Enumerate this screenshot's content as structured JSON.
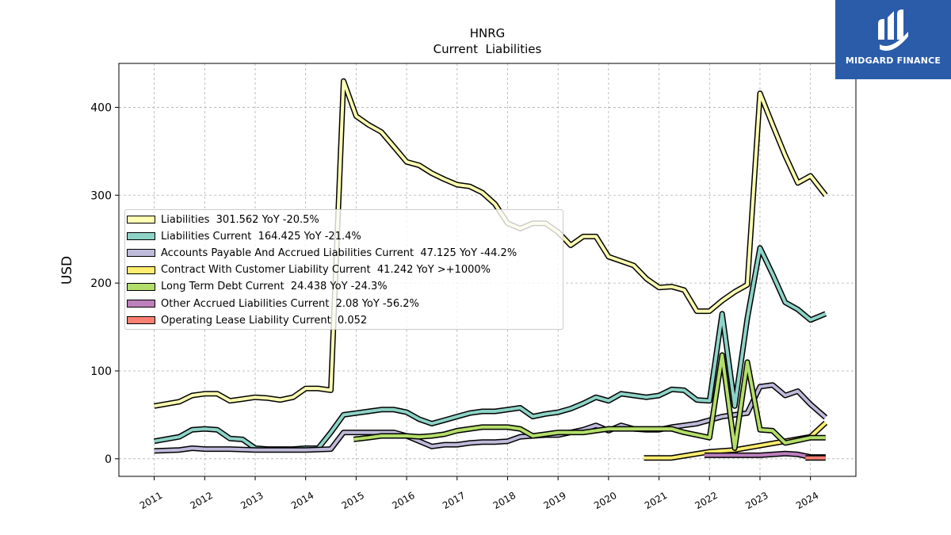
{
  "brand": {
    "name": "MIDGARD FINANCE",
    "color": "#2a5caa"
  },
  "chart_data": {
    "type": "line",
    "title": "HNRG",
    "subtitle": "Current  Liabilities",
    "ylabel": "USD",
    "xlabel": "",
    "xlim": [
      2010.3,
      2024.9
    ],
    "ylim": [
      -20,
      450
    ],
    "yticks": [
      0,
      100,
      200,
      300,
      400
    ],
    "xticks": [
      2011,
      2012,
      2013,
      2014,
      2015,
      2016,
      2017,
      2018,
      2019,
      2020,
      2021,
      2022,
      2023,
      2024
    ],
    "grid": true,
    "legend_position": "center-left",
    "series": [
      {
        "name": "Liabilities  301.562 YoY -20.5%",
        "color": "#ffffb3",
        "points": [
          [
            2011.0,
            60
          ],
          [
            2011.5,
            65
          ],
          [
            2011.75,
            72
          ],
          [
            2012.0,
            74
          ],
          [
            2012.25,
            74
          ],
          [
            2012.5,
            66
          ],
          [
            2012.75,
            68
          ],
          [
            2013.0,
            70
          ],
          [
            2013.25,
            69
          ],
          [
            2013.5,
            67
          ],
          [
            2013.75,
            70
          ],
          [
            2014.0,
            80
          ],
          [
            2014.25,
            80
          ],
          [
            2014.5,
            78
          ],
          [
            2014.75,
            430
          ],
          [
            2015.0,
            390
          ],
          [
            2015.25,
            380
          ],
          [
            2015.5,
            372
          ],
          [
            2015.75,
            355
          ],
          [
            2016.0,
            338
          ],
          [
            2016.25,
            334
          ],
          [
            2016.5,
            325
          ],
          [
            2016.75,
            318
          ],
          [
            2017.0,
            312
          ],
          [
            2017.25,
            310
          ],
          [
            2017.5,
            303
          ],
          [
            2017.75,
            290
          ],
          [
            2018.0,
            268
          ],
          [
            2018.25,
            262
          ],
          [
            2018.5,
            268
          ],
          [
            2018.75,
            268
          ],
          [
            2019.0,
            258
          ],
          [
            2019.25,
            243
          ],
          [
            2019.5,
            253
          ],
          [
            2019.75,
            253
          ],
          [
            2020.0,
            230
          ],
          [
            2020.25,
            225
          ],
          [
            2020.5,
            220
          ],
          [
            2020.75,
            205
          ],
          [
            2021.0,
            195
          ],
          [
            2021.25,
            196
          ],
          [
            2021.5,
            192
          ],
          [
            2021.75,
            168
          ],
          [
            2022.0,
            168
          ],
          [
            2022.25,
            180
          ],
          [
            2022.5,
            190
          ],
          [
            2022.75,
            198
          ],
          [
            2023.0,
            416
          ],
          [
            2023.25,
            380
          ],
          [
            2023.5,
            345
          ],
          [
            2023.75,
            314
          ],
          [
            2024.0,
            322
          ],
          [
            2024.3,
            300
          ]
        ]
      },
      {
        "name": "Liabilities Current  164.425 YoY -21.4%",
        "color": "#8dd3c7",
        "points": [
          [
            2011.0,
            20
          ],
          [
            2011.5,
            25
          ],
          [
            2011.75,
            33
          ],
          [
            2012.0,
            34
          ],
          [
            2012.25,
            33
          ],
          [
            2012.5,
            23
          ],
          [
            2012.75,
            22
          ],
          [
            2013.0,
            12
          ],
          [
            2013.25,
            11
          ],
          [
            2013.5,
            11
          ],
          [
            2013.75,
            11
          ],
          [
            2014.0,
            12
          ],
          [
            2014.25,
            12
          ],
          [
            2014.5,
            30
          ],
          [
            2014.75,
            50
          ],
          [
            2015.0,
            52
          ],
          [
            2015.25,
            54
          ],
          [
            2015.5,
            56
          ],
          [
            2015.75,
            56
          ],
          [
            2016.0,
            53
          ],
          [
            2016.25,
            45
          ],
          [
            2016.5,
            40
          ],
          [
            2016.75,
            44
          ],
          [
            2017.0,
            48
          ],
          [
            2017.25,
            52
          ],
          [
            2017.5,
            54
          ],
          [
            2017.75,
            54
          ],
          [
            2018.0,
            56
          ],
          [
            2018.25,
            58
          ],
          [
            2018.5,
            48
          ],
          [
            2018.75,
            51
          ],
          [
            2019.0,
            53
          ],
          [
            2019.25,
            57
          ],
          [
            2019.5,
            63
          ],
          [
            2019.75,
            70
          ],
          [
            2020.0,
            66
          ],
          [
            2020.25,
            74
          ],
          [
            2020.5,
            72
          ],
          [
            2020.75,
            70
          ],
          [
            2021.0,
            72
          ],
          [
            2021.25,
            79
          ],
          [
            2021.5,
            78
          ],
          [
            2021.75,
            67
          ],
          [
            2022.0,
            66
          ],
          [
            2022.25,
            165
          ],
          [
            2022.5,
            60
          ],
          [
            2022.75,
            160
          ],
          [
            2023.0,
            240
          ],
          [
            2023.25,
            210
          ],
          [
            2023.5,
            178
          ],
          [
            2023.75,
            170
          ],
          [
            2024.0,
            158
          ],
          [
            2024.3,
            165
          ]
        ]
      },
      {
        "name": "Accounts Payable And Accrued Liabilities Current  47.125 YoY -44.2%",
        "color": "#bebada",
        "points": [
          [
            2011.0,
            9
          ],
          [
            2011.5,
            10
          ],
          [
            2011.75,
            12
          ],
          [
            2012.0,
            11
          ],
          [
            2012.5,
            11
          ],
          [
            2013.0,
            10
          ],
          [
            2013.5,
            10
          ],
          [
            2014.0,
            10
          ],
          [
            2014.5,
            11
          ],
          [
            2014.75,
            30
          ],
          [
            2015.0,
            30
          ],
          [
            2015.5,
            30
          ],
          [
            2015.75,
            30
          ],
          [
            2016.0,
            26
          ],
          [
            2016.25,
            20
          ],
          [
            2016.5,
            14
          ],
          [
            2016.75,
            16
          ],
          [
            2017.0,
            16
          ],
          [
            2017.25,
            18
          ],
          [
            2017.5,
            19
          ],
          [
            2017.75,
            19
          ],
          [
            2018.0,
            20
          ],
          [
            2018.25,
            25
          ],
          [
            2018.5,
            26
          ],
          [
            2018.75,
            27
          ],
          [
            2019.0,
            27
          ],
          [
            2019.25,
            30
          ],
          [
            2019.5,
            33
          ],
          [
            2019.75,
            38
          ],
          [
            2020.0,
            32
          ],
          [
            2020.25,
            38
          ],
          [
            2020.5,
            34
          ],
          [
            2020.75,
            33
          ],
          [
            2021.0,
            33
          ],
          [
            2021.25,
            36
          ],
          [
            2021.5,
            38
          ],
          [
            2021.75,
            40
          ],
          [
            2022.0,
            44
          ],
          [
            2022.25,
            48
          ],
          [
            2022.5,
            50
          ],
          [
            2022.75,
            52
          ],
          [
            2023.0,
            82
          ],
          [
            2023.25,
            84
          ],
          [
            2023.5,
            72
          ],
          [
            2023.75,
            77
          ],
          [
            2024.0,
            62
          ],
          [
            2024.3,
            47
          ]
        ]
      },
      {
        "name": "Contract With Customer Liability Current  41.242 YoY >+1000%",
        "color": "#ffed6f",
        "points": [
          [
            2020.7,
            1
          ],
          [
            2021.25,
            1
          ],
          [
            2022.0,
            8
          ],
          [
            2022.5,
            10
          ],
          [
            2023.0,
            15
          ],
          [
            2023.5,
            20
          ],
          [
            2024.0,
            25
          ],
          [
            2024.3,
            41
          ]
        ]
      },
      {
        "name": "Long Term Debt Current  24.438 YoY -24.3%",
        "color": "#b3de69",
        "points": [
          [
            2014.95,
            22
          ],
          [
            2015.25,
            24
          ],
          [
            2015.5,
            26
          ],
          [
            2016.0,
            26
          ],
          [
            2016.25,
            25
          ],
          [
            2016.5,
            26
          ],
          [
            2016.75,
            28
          ],
          [
            2017.0,
            32
          ],
          [
            2017.25,
            34
          ],
          [
            2017.5,
            36
          ],
          [
            2018.0,
            36
          ],
          [
            2018.25,
            34
          ],
          [
            2018.5,
            26
          ],
          [
            2018.75,
            28
          ],
          [
            2019.0,
            30
          ],
          [
            2019.5,
            30
          ],
          [
            2020.0,
            34
          ],
          [
            2020.5,
            34
          ],
          [
            2021.0,
            34
          ],
          [
            2021.25,
            34
          ],
          [
            2021.5,
            30
          ],
          [
            2022.0,
            24
          ],
          [
            2022.25,
            118
          ],
          [
            2022.5,
            12
          ],
          [
            2022.75,
            110
          ],
          [
            2023.0,
            33
          ],
          [
            2023.25,
            32
          ],
          [
            2023.5,
            18
          ],
          [
            2024.0,
            24
          ],
          [
            2024.3,
            24
          ]
        ]
      },
      {
        "name": "Other Accrued Liabilities Current  2.08 YoY -56.2%",
        "color": "#bc80bd",
        "points": [
          [
            2021.9,
            4
          ],
          [
            2022.5,
            4
          ],
          [
            2023.0,
            4
          ],
          [
            2023.5,
            6
          ],
          [
            2023.75,
            5
          ],
          [
            2024.0,
            2
          ],
          [
            2024.3,
            2
          ]
        ]
      },
      {
        "name": "Operating Lease Liability Current  0.052",
        "color": "#fb8072",
        "points": [
          [
            2023.9,
            1
          ],
          [
            2024.3,
            1
          ]
        ]
      }
    ]
  }
}
